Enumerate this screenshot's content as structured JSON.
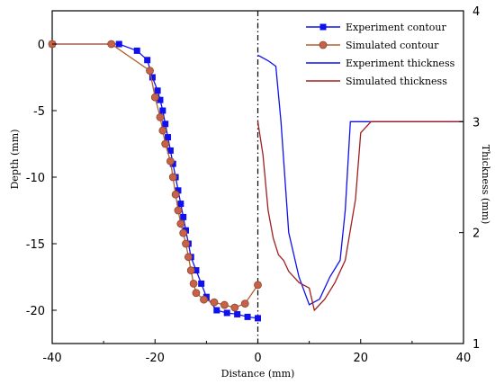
{
  "chart_data": {
    "type": "line",
    "xlabel": "Distance (mm)",
    "ylabel_left": "Depth (mm)",
    "ylabel_right": "Thickness (mm)",
    "xlim": [
      -40,
      40
    ],
    "ylim_left": [
      -22.5,
      2.5
    ],
    "ylim_right": [
      1,
      4
    ],
    "x_ticks": [
      -40,
      -20,
      0,
      20,
      40
    ],
    "y_left_ticks": [
      0,
      -5,
      -10,
      -15,
      -20
    ],
    "y_right_ticks": [
      1,
      2,
      3,
      4
    ],
    "grid": false,
    "legend_position": "top-right",
    "vertical_line_x": 0,
    "series": [
      {
        "name": "Experiment contour",
        "axis": "left",
        "color": "#1010ee",
        "marker": "square",
        "x": [
          -40,
          -27,
          -23.5,
          -21.5,
          -20.5,
          -19.5,
          -19,
          -18.5,
          -18,
          -17.5,
          -17,
          -16.5,
          -16,
          -15.5,
          -15,
          -14.5,
          -14,
          -13.5,
          -13,
          -12,
          -11,
          -10,
          -8,
          -6,
          -4,
          -2,
          0
        ],
        "y": [
          0,
          0,
          -0.5,
          -1.2,
          -2.5,
          -3.5,
          -4.2,
          -5,
          -6,
          -7,
          -8,
          -9,
          -10,
          -11,
          -12,
          -13,
          -14,
          -15,
          -16,
          -17,
          -18,
          -19,
          -20,
          -20.2,
          -20.3,
          -20.5,
          -20.6
        ]
      },
      {
        "name": "Simulated contour",
        "axis": "left",
        "color": "#b06030",
        "marker": "circle",
        "x": [
          -40,
          -28.5,
          -21,
          -20,
          -19,
          -18.5,
          -18,
          -17,
          -16.5,
          -16,
          -15.5,
          -15,
          -14.5,
          -14,
          -13.5,
          -13,
          -12.5,
          -12,
          -10.5,
          -8.5,
          -6.5,
          -4.5,
          -2.5,
          0
        ],
        "y": [
          0,
          0,
          -2,
          -4,
          -5.5,
          -6.5,
          -7.5,
          -8.8,
          -10,
          -11.3,
          -12.5,
          -13.5,
          -14.2,
          -15,
          -16,
          -17,
          -18,
          -18.7,
          -19.2,
          -19.4,
          -19.6,
          -19.8,
          -19.5,
          -18.1
        ]
      },
      {
        "name": "Experiment thickness",
        "axis": "right",
        "color": "#1010ee",
        "marker": "none",
        "x": [
          0,
          2,
          3.5,
          4.5,
          6,
          8,
          10,
          12,
          14,
          16,
          17,
          18,
          20,
          30,
          40
        ],
        "y": [
          3.6,
          3.55,
          3.5,
          3.0,
          2.0,
          1.6,
          1.35,
          1.4,
          1.6,
          1.75,
          2.2,
          3.0,
          3.0,
          3.0,
          3.0
        ]
      },
      {
        "name": "Simulated thickness",
        "axis": "right",
        "color": "#a02020",
        "marker": "none",
        "x": [
          0,
          1,
          2,
          3,
          4,
          5,
          6,
          8,
          10,
          11,
          13,
          15,
          17,
          19,
          20,
          22,
          24,
          30,
          40
        ],
        "y": [
          3.0,
          2.7,
          2.2,
          1.95,
          1.8,
          1.75,
          1.65,
          1.55,
          1.5,
          1.3,
          1.4,
          1.55,
          1.75,
          2.3,
          2.9,
          3.0,
          3.0,
          3.0,
          3.0
        ]
      }
    ]
  }
}
